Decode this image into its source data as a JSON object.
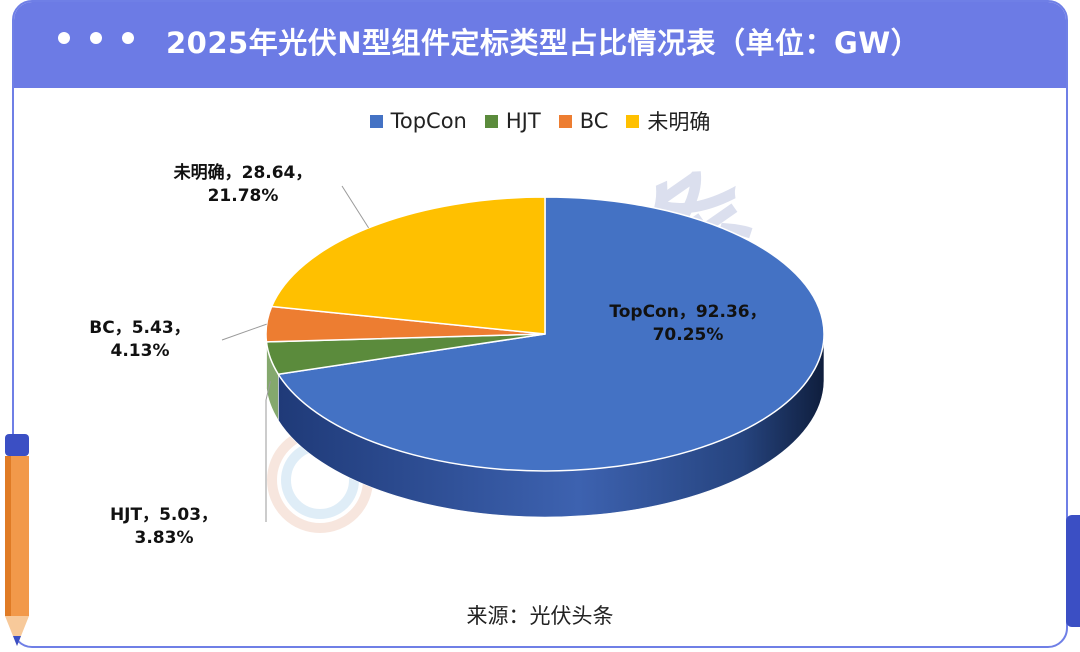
{
  "header": {
    "title": "2025年光伏N型组件定标类型占比情况表（单位：GW）"
  },
  "watermark": "光伏头条",
  "source": "来源：光伏头条",
  "colors": {
    "frame": "#6f7fe6",
    "header": "#6c7be5",
    "topcon": "#4472c4",
    "hjt": "#5b8b3c",
    "bc": "#ed7d31",
    "unknown": "#ffc000"
  },
  "chart_data": {
    "type": "pie",
    "style": "3d",
    "unit": "GW",
    "legend": [
      "TopCon",
      "HJT",
      "BC",
      "未明确"
    ],
    "legend_position": "top",
    "slices": [
      {
        "name": "TopCon",
        "value": 92.36,
        "percent": 70.25,
        "color": "#4472c4",
        "label_line1": "TopCon，92.36，",
        "label_line2": "70.25%"
      },
      {
        "name": "HJT",
        "value": 5.03,
        "percent": 3.83,
        "color": "#5b8b3c",
        "label_line1": "HJT，5.03，",
        "label_line2": "3.83%"
      },
      {
        "name": "BC",
        "value": 5.43,
        "percent": 4.13,
        "color": "#ed7d31",
        "label_line1": "BC，5.43，",
        "label_line2": "4.13%"
      },
      {
        "name": "未明确",
        "value": 28.64,
        "percent": 21.78,
        "color": "#ffc000",
        "label_line1": "未明确，28.64，",
        "label_line2": "21.78%"
      }
    ]
  }
}
